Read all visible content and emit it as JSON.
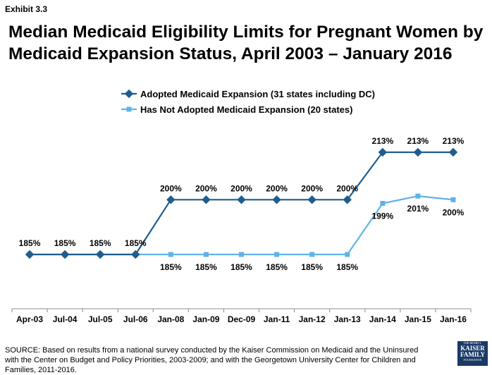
{
  "header": {
    "exhibit": "Exhibit 3.3",
    "title": "Median Medicaid Eligibility Limits for Pregnant Women by Medicaid Expansion Status, April 2003 – January 2016"
  },
  "footer": {
    "source": "SOURCE:  Based on results from a national survey conducted by the Kaiser Commission on Medicaid and the Uninsured with the Center on Budget and Policy Priorities, 2003-2009; and with the Georgetown University Center for Children and Families, 2011-2016.",
    "logo_line1": "THE HENRY J.",
    "logo_line2": "KAISER",
    "logo_line3": "FAMILY",
    "logo_line4": "FOUNDATION"
  },
  "chart_data": {
    "type": "line",
    "categories": [
      "Apr-03",
      "Jul-04",
      "Jul-05",
      "Jul-06",
      "Jan-08",
      "Jan-09",
      "Dec-09",
      "Jan-11",
      "Jan-12",
      "Jan-13",
      "Jan-14",
      "Jan-15",
      "Jan-16"
    ],
    "series": [
      {
        "name": "Adopted Medicaid Expansion (31 states including DC)",
        "values": [
          185,
          185,
          185,
          185,
          200,
          200,
          200,
          200,
          200,
          200,
          213,
          213,
          213
        ],
        "labels": [
          "185%",
          "185%",
          "185%",
          "185%",
          "200%",
          "200%",
          "200%",
          "200%",
          "200%",
          "200%",
          "213%",
          "213%",
          "213%"
        ],
        "color": "#1f5d8e",
        "marker": "diamond"
      },
      {
        "name": "Has Not Adopted Medicaid Expansion (20 states)",
        "values": [
          185,
          185,
          185,
          185,
          185,
          185,
          185,
          185,
          185,
          185,
          199,
          201,
          200
        ],
        "labels": [
          "",
          "",
          "",
          "",
          "185%",
          "185%",
          "185%",
          "185%",
          "185%",
          "185%",
          "199%",
          "201%",
          "200%"
        ],
        "color": "#5fb3e8",
        "marker": "square"
      }
    ],
    "legend_position": "top-center",
    "grid": false
  }
}
